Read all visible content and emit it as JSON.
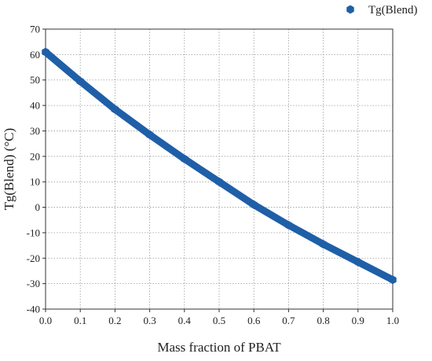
{
  "chart_data": {
    "type": "scatter",
    "title": "",
    "xlabel": "Mass fraction of PBAT",
    "ylabel": "Tg(Blend) (°C)",
    "xlim": [
      0.0,
      1.0
    ],
    "ylim": [
      -40,
      70
    ],
    "x_ticks": [
      "0.0",
      "0.1",
      "0.2",
      "0.3",
      "0.4",
      "0.5",
      "0.6",
      "0.7",
      "0.8",
      "0.9",
      "1.0"
    ],
    "y_ticks": [
      "-40",
      "-30",
      "-20",
      "-10",
      "0",
      "10",
      "20",
      "30",
      "40",
      "50",
      "60",
      "70"
    ],
    "grid": true,
    "legend_position": "top-right",
    "series": [
      {
        "name": "Tg(Blend)",
        "color": "#1f5fa8",
        "marker": "hexagon",
        "x": [
          0.0,
          0.1,
          0.2,
          0.3,
          0.4,
          0.5,
          0.6,
          0.7,
          0.8,
          0.9,
          1.0
        ],
        "y": [
          61,
          49.5,
          38.5,
          28.5,
          19,
          10,
          1,
          -7,
          -14.5,
          -21.5,
          -28.5
        ]
      }
    ]
  }
}
